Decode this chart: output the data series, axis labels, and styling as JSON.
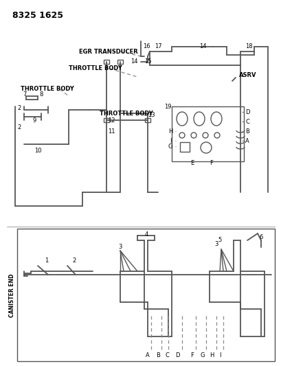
{
  "title": "8325 1625",
  "bg_color": "#ffffff",
  "line_color": "#555555",
  "text_color": "#000000",
  "dashed_color": "#888888",
  "labels": {
    "egr_transducer": "EGR TRANSDUCER",
    "throttle_body_1": "THROTTLE BODY",
    "throttle_body_2": "THROTTLE BODY",
    "throttle_body_3": "THROTTLE BODY",
    "asrv": "ASRV",
    "canister_end": "CANISTER END"
  },
  "numbers_top": [
    "7",
    "8",
    "2",
    "9",
    "2",
    "10",
    "11",
    "12",
    "13",
    "14",
    "15",
    "16",
    "17",
    "18",
    "19"
  ],
  "numbers_bottom": [
    "1",
    "2",
    "3",
    "4",
    "5",
    "6",
    "3"
  ],
  "letters_bottom": [
    "A",
    "B",
    "C",
    "D",
    "F",
    "G",
    "H",
    "I"
  ],
  "letters_right": [
    "A",
    "B",
    "C",
    "D",
    "E",
    "F",
    "G",
    "H",
    "I"
  ]
}
